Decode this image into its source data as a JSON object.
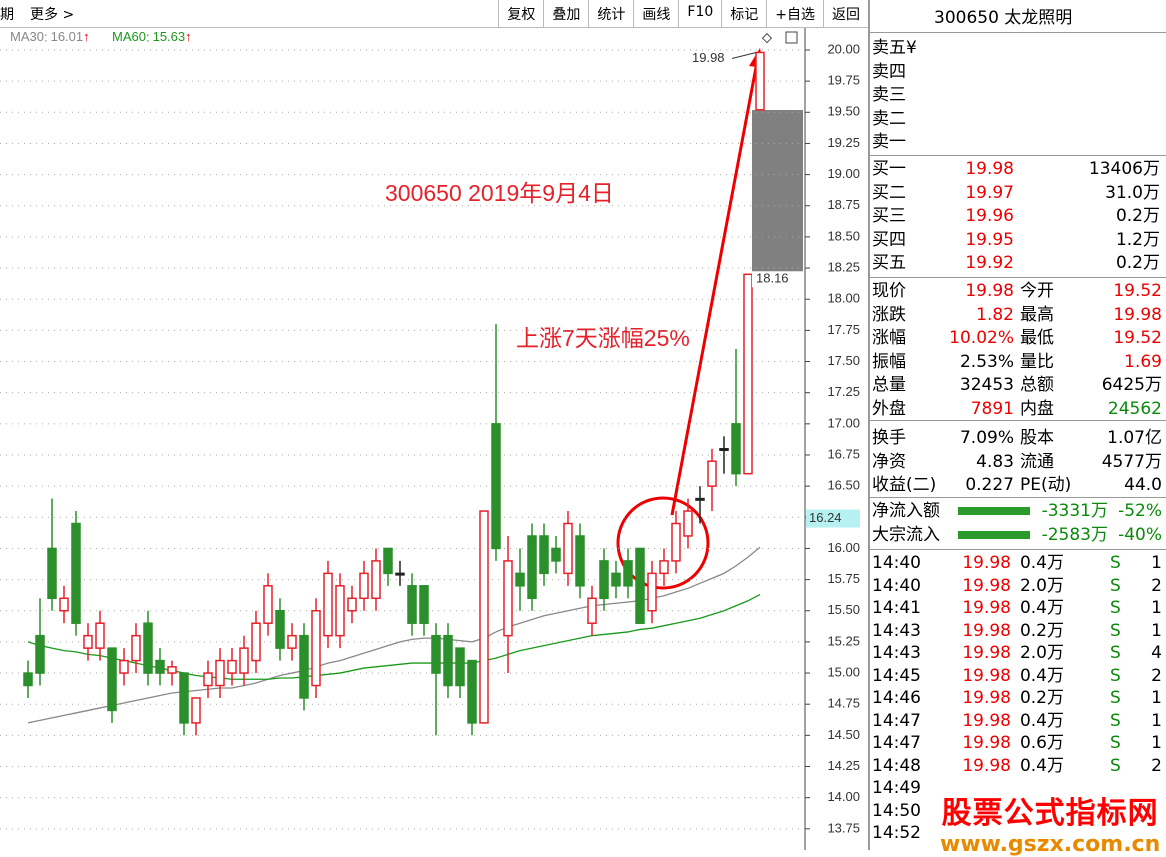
{
  "toolbar": {
    "left": [
      "期",
      "更多 >"
    ],
    "buttons": [
      "复权",
      "叠加",
      "统计",
      "画线",
      "F10",
      "标记",
      "+自选",
      "返回"
    ]
  },
  "chart_data": {
    "type": "candlestick",
    "ylim": [
      13.58,
      20.15
    ],
    "yticks": [
      13.75,
      {
        "value": 14,
        "label": "14.00"
      },
      14.25,
      {
        "value": 14.5,
        "label": "14.50"
      },
      14.75,
      {
        "value": 15,
        "label": "15.00"
      },
      15.25,
      {
        "value": 15.5,
        "label": "15.50"
      },
      15.75,
      {
        "value": 16,
        "label": "16.00"
      },
      16.25,
      {
        "value": 16.5,
        "label": "16.50"
      },
      16.75,
      {
        "value": 17,
        "label": "17.00"
      },
      17.25,
      {
        "value": 17.5,
        "label": "17.50"
      },
      17.75,
      {
        "value": 18,
        "label": "18.00"
      },
      18.25,
      {
        "value": 18.5,
        "label": "18.50"
      },
      18.75,
      {
        "value": 19,
        "label": "19.00"
      },
      19.25,
      {
        "value": 19.5,
        "label": "19.50"
      },
      19.75,
      {
        "value": 20,
        "label": "20.00"
      }
    ],
    "grid": true,
    "rise_color": "#e8202a",
    "fall_color": "#2b8f2b",
    "flat_color": "#222222",
    "open": [
      15.0,
      15.3,
      16.0,
      15.5,
      16.2,
      15.2,
      15.2,
      15.2,
      15.0,
      15.1,
      15.4,
      15.1,
      15.0,
      15.0,
      14.6,
      14.9,
      14.9,
      15.0,
      15.0,
      15.1,
      15.4,
      15.5,
      15.2,
      15.3,
      14.9,
      15.3,
      15.3,
      15.5,
      15.6,
      15.6,
      16.0,
      15.8,
      15.7,
      15.7,
      15.3,
      15.3,
      15.2,
      15.1,
      14.6,
      17.0,
      15.3,
      15.8,
      16.1,
      16.1,
      16.0,
      15.8,
      16.1,
      15.4,
      15.9,
      15.8,
      15.9,
      16.0,
      15.5,
      15.8,
      15.9,
      16.1,
      16.4,
      16.5,
      16.8,
      17.0,
      16.6,
      19.52
    ],
    "close": [
      14.9,
      15.0,
      15.6,
      15.6,
      15.4,
      15.3,
      15.4,
      14.7,
      15.1,
      15.3,
      15.0,
      15.0,
      15.05,
      14.6,
      14.8,
      15.0,
      15.1,
      15.1,
      15.2,
      15.4,
      15.7,
      15.2,
      15.3,
      14.8,
      15.5,
      15.8,
      15.7,
      15.6,
      15.8,
      15.9,
      15.8,
      15.8,
      15.4,
      15.4,
      15.0,
      14.9,
      14.9,
      14.6,
      16.3,
      16.0,
      15.9,
      15.7,
      15.6,
      15.8,
      15.9,
      16.2,
      15.7,
      15.6,
      15.6,
      15.7,
      15.7,
      15.4,
      15.8,
      15.9,
      16.2,
      16.3,
      16.4,
      16.7,
      16.8,
      16.6,
      18.2,
      19.98
    ],
    "high": [
      15.1,
      15.6,
      16.4,
      15.7,
      16.3,
      15.4,
      15.5,
      15.2,
      15.2,
      15.4,
      15.5,
      15.2,
      15.1,
      15.0,
      14.8,
      15.1,
      15.2,
      15.2,
      15.3,
      15.5,
      15.8,
      15.6,
      15.4,
      15.4,
      15.6,
      15.9,
      15.8,
      15.7,
      15.9,
      16.0,
      16.0,
      15.9,
      15.8,
      15.7,
      15.4,
      15.4,
      15.2,
      15.1,
      16.3,
      17.8,
      16.1,
      16.0,
      16.2,
      16.2,
      16.1,
      16.3,
      16.2,
      15.7,
      16.0,
      15.9,
      16.0,
      16.0,
      15.9,
      16.0,
      16.3,
      16.4,
      16.5,
      16.8,
      16.9,
      17.6,
      18.2,
      19.98
    ],
    "low": [
      14.8,
      14.9,
      15.5,
      15.4,
      15.3,
      15.1,
      15.1,
      14.6,
      14.9,
      15.0,
      14.9,
      14.9,
      14.9,
      14.5,
      14.5,
      14.8,
      14.8,
      14.9,
      14.9,
      15.0,
      15.3,
      15.1,
      15.1,
      14.7,
      14.8,
      15.2,
      15.2,
      15.4,
      15.5,
      15.5,
      15.7,
      15.7,
      15.3,
      15.3,
      14.5,
      14.8,
      14.8,
      14.5,
      14.6,
      15.9,
      15.0,
      15.5,
      15.5,
      15.7,
      15.8,
      15.7,
      15.6,
      15.3,
      15.5,
      15.6,
      15.6,
      15.4,
      15.4,
      15.7,
      15.8,
      16.0,
      16.2,
      16.3,
      16.6,
      16.5,
      16.6,
      19.52
    ],
    "ma_lines": [
      {
        "name": "MA30",
        "value": 16.01,
        "trend": "↑",
        "color": "#888888",
        "values": [
          14.6,
          14.62,
          14.64,
          14.66,
          14.68,
          14.7,
          14.72,
          14.74,
          14.76,
          14.78,
          14.8,
          14.82,
          14.84,
          14.85,
          14.86,
          14.87,
          14.88,
          14.88,
          14.9,
          14.92,
          14.95,
          14.98,
          15.0,
          15.02,
          15.05,
          15.08,
          15.1,
          15.13,
          15.16,
          15.19,
          15.22,
          15.25,
          15.27,
          15.28,
          15.28,
          15.27,
          15.26,
          15.25,
          15.28,
          15.33,
          15.37,
          15.4,
          15.43,
          15.46,
          15.48,
          15.5,
          15.52,
          15.54,
          15.55,
          15.56,
          15.57,
          15.58,
          15.6,
          15.62,
          15.65,
          15.68,
          15.72,
          15.76,
          15.8,
          15.86,
          15.93,
          16.01
        ]
      },
      {
        "name": "MA60",
        "value": 15.63,
        "trend": "↑",
        "color": "#1a9a1a",
        "values": [
          15.25,
          15.22,
          15.2,
          15.18,
          15.17,
          15.15,
          15.14,
          15.12,
          15.1,
          15.08,
          15.06,
          15.04,
          15.02,
          15.0,
          14.98,
          14.97,
          14.96,
          14.95,
          14.95,
          14.95,
          14.95,
          14.96,
          14.96,
          14.97,
          14.98,
          14.99,
          15.0,
          15.02,
          15.04,
          15.05,
          15.06,
          15.07,
          15.08,
          15.08,
          15.08,
          15.08,
          15.08,
          15.08,
          15.1,
          15.12,
          15.15,
          15.18,
          15.2,
          15.22,
          15.24,
          15.26,
          15.28,
          15.3,
          15.31,
          15.32,
          15.33,
          15.35,
          15.36,
          15.38,
          15.4,
          15.42,
          15.44,
          15.47,
          15.5,
          15.54,
          15.58,
          15.63
        ]
      }
    ],
    "price_marks": [
      19.98,
      18.16
    ],
    "cursor_price": 16.24,
    "annotations": [
      "300650 2019年9月4日",
      "上涨7天涨幅25%"
    ]
  },
  "quote": {
    "title": "300650 太龙照明",
    "sell": [
      "卖五¥",
      "卖四",
      "卖三",
      "卖二",
      "卖一"
    ],
    "buy": [
      [
        "买一",
        "19.98",
        "13406万"
      ],
      [
        "买二",
        "19.97",
        "31.0万"
      ],
      [
        "买三",
        "19.96",
        "0.2万"
      ],
      [
        "买四",
        "19.95",
        "1.2万"
      ],
      [
        "买五",
        "19.92",
        "0.2万"
      ]
    ],
    "stats": [
      [
        {
          "label": "现价",
          "value": "19.98",
          "color": "red"
        },
        {
          "label": "今开",
          "value": "19.52",
          "color": "red"
        }
      ],
      [
        {
          "label": "涨跌",
          "value": "1.82",
          "color": "red"
        },
        {
          "label": "最高",
          "value": "19.98",
          "color": "red"
        }
      ],
      [
        {
          "label": "涨幅",
          "value": "10.02%",
          "color": "red"
        },
        {
          "label": "最低",
          "value": "19.52",
          "color": "red"
        }
      ],
      [
        {
          "label": "振幅",
          "value": "2.53%",
          "color": "black"
        },
        {
          "label": "量比",
          "value": "1.69",
          "color": "red"
        }
      ],
      [
        {
          "label": "总量",
          "value": "32453",
          "color": "black"
        },
        {
          "label": "总额",
          "value": "6425万",
          "color": "black"
        }
      ],
      [
        {
          "label": "外盘",
          "value": "7891",
          "color": "red"
        },
        {
          "label": "内盘",
          "value": "24562",
          "color": "green"
        }
      ],
      [
        {
          "label": "换手",
          "value": "7.09%",
          "color": "black"
        },
        {
          "label": "股本",
          "value": "1.07亿",
          "color": "black"
        }
      ],
      [
        {
          "label": "净资",
          "value": "4.83",
          "color": "black"
        },
        {
          "label": "流通",
          "value": "4577万",
          "color": "black"
        }
      ],
      [
        {
          "label": "收益(二)",
          "value": "0.227",
          "color": "black"
        },
        {
          "label": "PE(动)",
          "value": "44.0",
          "color": "black"
        }
      ]
    ],
    "flow": [
      [
        "净流入额",
        "-3331万",
        "-52%"
      ],
      [
        "大宗流入",
        "-2583万",
        "-40%"
      ]
    ],
    "trades": [
      [
        "14:40",
        "19.98",
        "0.4万",
        "S",
        "1"
      ],
      [
        "14:40",
        "19.98",
        "2.0万",
        "S",
        "2"
      ],
      [
        "14:41",
        "19.98",
        "0.4万",
        "S",
        "1"
      ],
      [
        "14:43",
        "19.98",
        "0.2万",
        "S",
        "1"
      ],
      [
        "14:43",
        "19.98",
        "2.0万",
        "S",
        "4"
      ],
      [
        "14:45",
        "19.98",
        "0.4万",
        "S",
        "2"
      ],
      [
        "14:46",
        "19.98",
        "0.2万",
        "S",
        "1"
      ],
      [
        "14:47",
        "19.98",
        "0.4万",
        "S",
        "1"
      ],
      [
        "14:47",
        "19.98",
        "0.6万",
        "S",
        "1"
      ],
      [
        "14:48",
        "19.98",
        "0.4万",
        "S",
        "2"
      ],
      [
        "14:49"
      ],
      [
        "14:50"
      ],
      [
        "14:52"
      ]
    ]
  },
  "watermark": {
    "name": "股票公式指标网",
    "url": "www.gszx.com.cn"
  }
}
